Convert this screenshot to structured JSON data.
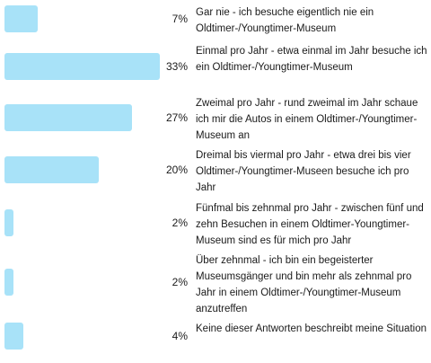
{
  "chart_data": {
    "type": "bar",
    "orientation": "horizontal",
    "title": "",
    "xlabel": "",
    "ylabel": "",
    "xlim": [
      0,
      33
    ],
    "grid": false,
    "bar_color": "#a8e2f8",
    "categories": [
      "Gar nie - ich besuche eigentlich nie ein Oldtimer-/Youngtimer-Museum",
      "Einmal pro Jahr - etwa einmal im Jahr besuche ich ein Oldtimer-/Youngtimer-Museum",
      "Zweimal pro Jahr - rund zweimal im Jahr schaue ich mir die Autos in einem Oldtimer-/Youngtimer-Museum an",
      "Dreimal bis viermal pro Jahr - etwa drei bis vier Oldtimer-/Youngtimer-Museen besuche ich pro Jahr",
      "Fünfmal bis zehnmal pro Jahr - zwischen fünf und zehn Besuchen in einem Oldtimer-Youngtimer-Museum sind es für mich pro Jahr",
      "Über zehnmal - ich bin ein begeisterter Museumsgänger und bin mehr als zehnmal pro Jahr in einem Oldtimer-/Youngtimer-Museum anzutreffen",
      "Keine dieser Antworten beschreibt meine Situation"
    ],
    "values": [
      7,
      33,
      27,
      20,
      2,
      2,
      4
    ],
    "value_labels": [
      "7%",
      "33%",
      "27%",
      "20%",
      "2%",
      "2%",
      "4%"
    ]
  }
}
